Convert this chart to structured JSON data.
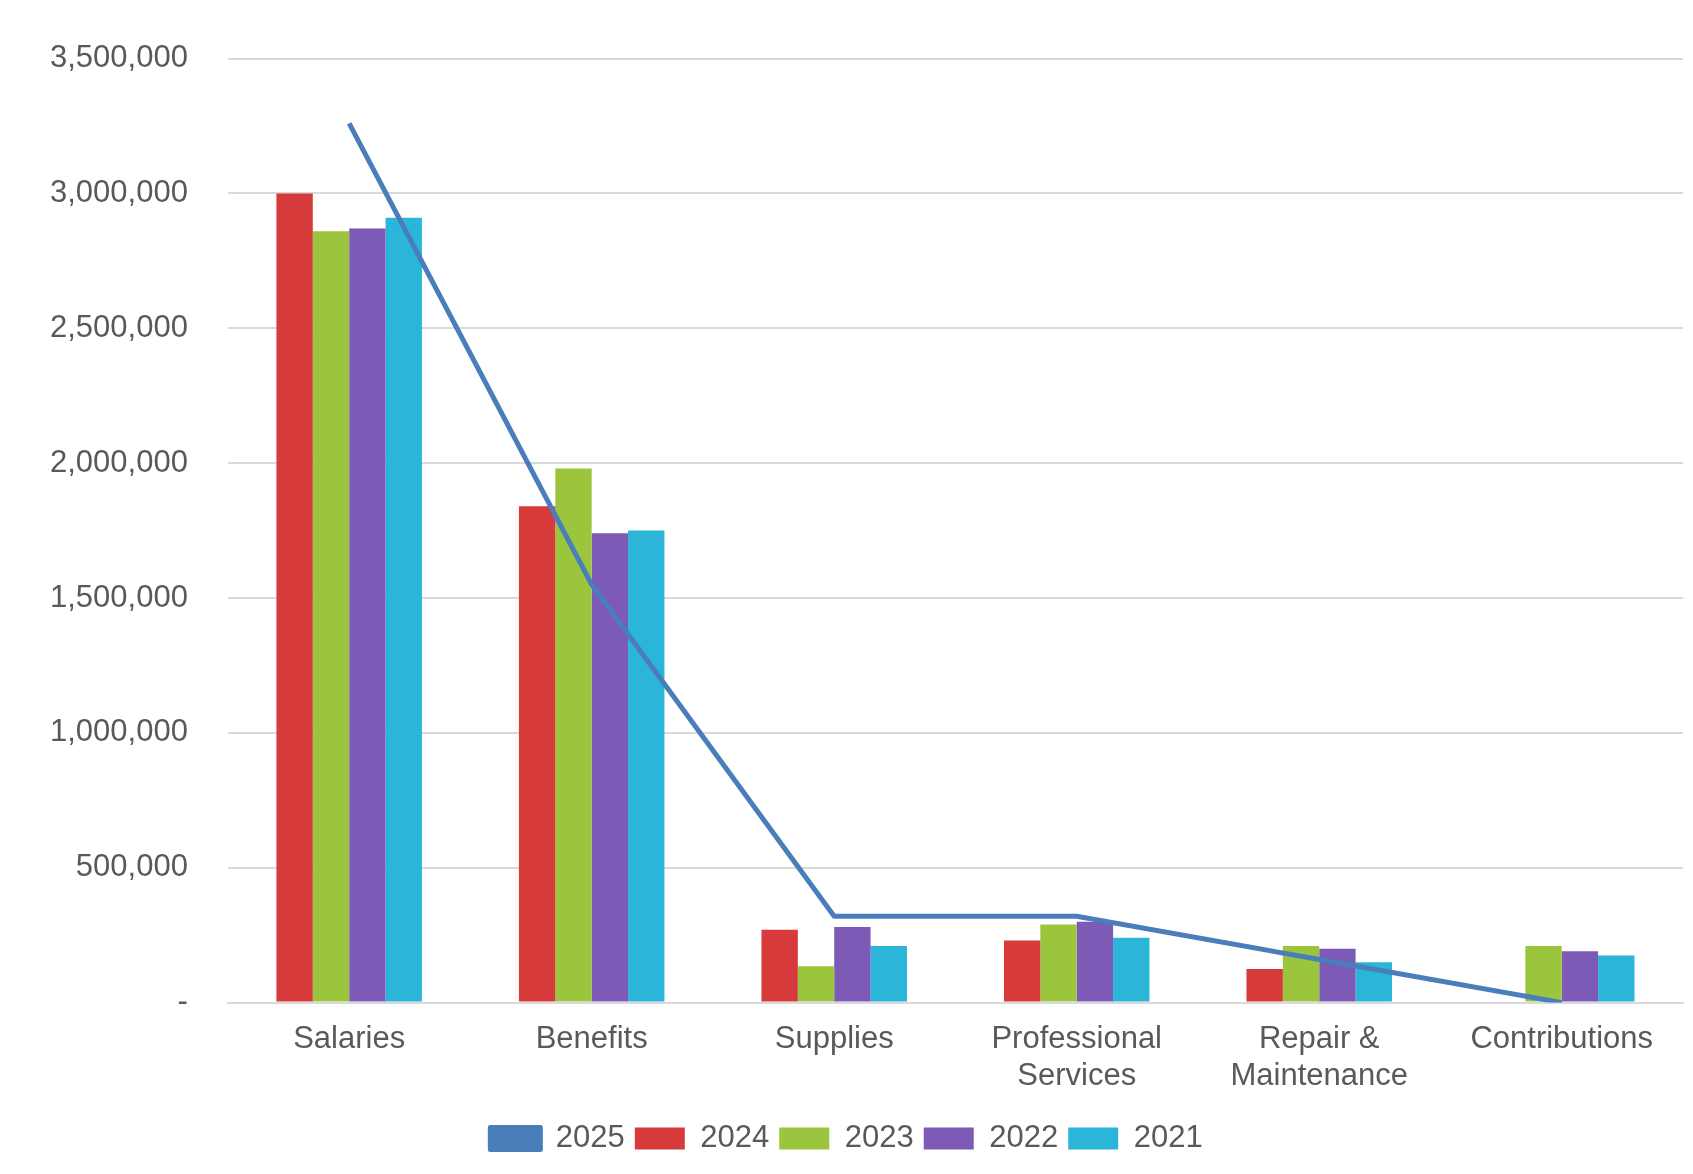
{
  "chart_data": {
    "type": "bar",
    "categories": [
      "Salaries",
      "Benefits",
      "Supplies",
      "Professional Services",
      "Repair & Maintenance",
      "Contributions"
    ],
    "series": [
      {
        "name": "2024",
        "color": "#d63a3a",
        "values": [
          3000000,
          1840000,
          270000,
          230000,
          125000,
          0
        ]
      },
      {
        "name": "2023",
        "color": "#9bc53d",
        "values": [
          2860000,
          1980000,
          135000,
          290000,
          210000,
          210000
        ]
      },
      {
        "name": "2022",
        "color": "#7d5ab5",
        "values": [
          2870000,
          1740000,
          280000,
          300000,
          200000,
          190000
        ]
      },
      {
        "name": "2021",
        "color": "#2bb5d8",
        "values": [
          2910000,
          1750000,
          210000,
          240000,
          150000,
          175000
        ]
      },
      {
        "name": "2025",
        "type": "line",
        "color": "#4a7ebb",
        "values": [
          3260000,
          1550000,
          320000,
          320000,
          160000,
          0
        ]
      }
    ],
    "ylim": [
      0,
      3500000
    ],
    "yticks": [
      {
        "value": 0,
        "label": "-"
      },
      {
        "value": 500000,
        "label": "500,000"
      },
      {
        "value": 1000000,
        "label": "1,000,000"
      },
      {
        "value": 1500000,
        "label": "1,500,000"
      },
      {
        "value": 2000000,
        "label": "2,000,000"
      },
      {
        "value": 2500000,
        "label": "2,500,000"
      },
      {
        "value": 3000000,
        "label": "3,000,000"
      },
      {
        "value": 3500000,
        "label": "3,500,000"
      }
    ],
    "grid": "y",
    "legend": "bottom",
    "marker": "none"
  }
}
